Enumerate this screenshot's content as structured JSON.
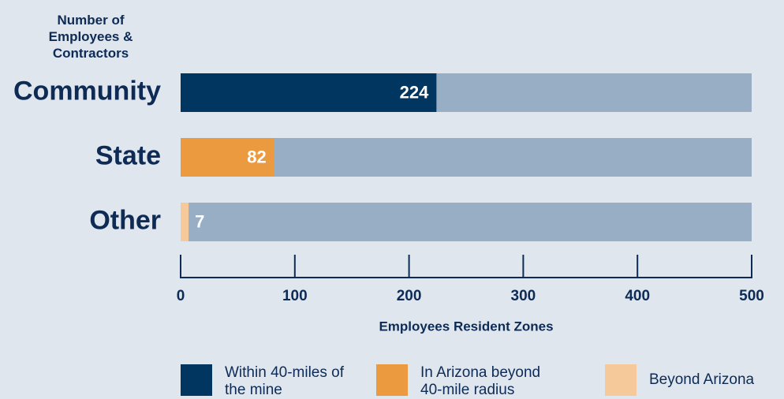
{
  "chart_data": {
    "type": "bar",
    "y_axis_label": "Number of Employees & Contractors",
    "x_axis_label": "Employees Resident Zones",
    "categories": [
      "Community",
      "State",
      "Other"
    ],
    "values": [
      224,
      82,
      7
    ],
    "colors": [
      "#003660",
      "#ec9a3f",
      "#f6c99b"
    ],
    "background_color": "#98aec4",
    "legend": [
      "Within 40-miles of the mine",
      "In Arizona beyond 40-mile radius",
      "Beyond Arizona"
    ],
    "xlim": [
      0,
      500
    ],
    "xticks": [
      0,
      100,
      200,
      300,
      400,
      500
    ]
  }
}
